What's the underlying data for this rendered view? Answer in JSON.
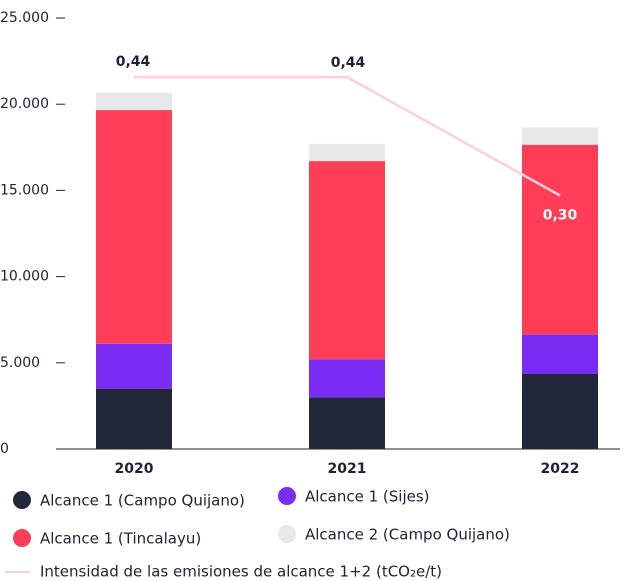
{
  "chart_data": {
    "type": "bar",
    "stacked": true,
    "categories": [
      "2020",
      "2021",
      "2022"
    ],
    "series": [
      {
        "name": "Alcance 1 (Campo Quijano)",
        "color": "#23273a",
        "values": [
          3500,
          3000,
          4350
        ]
      },
      {
        "name": "Alcance 1 (Sijes)",
        "color": "#7a2cf5",
        "values": [
          2600,
          2200,
          2300
        ]
      },
      {
        "name": "Alcance 1 (Tincalayu)",
        "color": "#ff3d57",
        "values": [
          13560,
          11500,
          11000
        ]
      },
      {
        "name": "Alcance 2 (Campo Quijano)",
        "color": "#e8e8ea",
        "values": [
          1000,
          1000,
          1000
        ]
      },
      {
        "name": "Intensidad de las emisiones de alcance 1+2 (tCO₂e/t)",
        "color": "#ffd0d8",
        "type": "line",
        "axis": "y2",
        "values": [
          0.44,
          0.44,
          0.3
        ],
        "value_labels": [
          "0,44",
          "0,44",
          "0,30"
        ]
      }
    ],
    "ylim": [
      0,
      25000
    ],
    "yticks": [
      0,
      {
        "value": 5000,
        "label": "5.000"
      },
      {
        "value": 10000,
        "label": "10.000"
      },
      {
        "value": 15000,
        "label": "15.000"
      },
      {
        "value": 20000,
        "label": "20.000"
      },
      {
        "value": 25000,
        "label": "25.000"
      }
    ],
    "y2lim": [
      0,
      0.51
    ],
    "grid": false
  }
}
